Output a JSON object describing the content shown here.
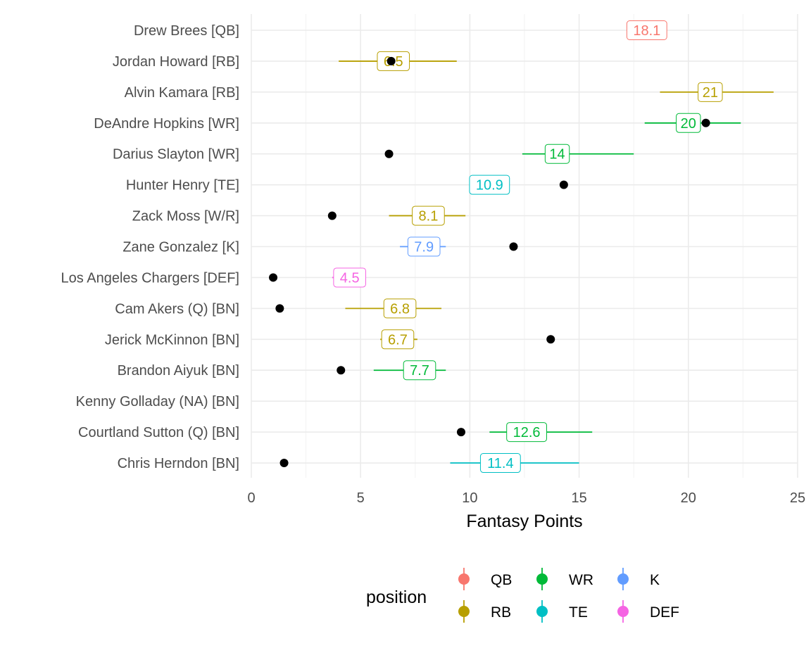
{
  "chart_data": {
    "type": "scatter",
    "xlabel": "Fantasy Points",
    "ylabel": "",
    "xlim": [
      0,
      25
    ],
    "x_ticks": [
      0,
      5,
      10,
      15,
      20,
      25
    ],
    "grid": true,
    "legend_placement": "bottom",
    "legend": {
      "title": "position",
      "entries": [
        {
          "name": "QB",
          "color": "#F8766D"
        },
        {
          "name": "RB",
          "color": "#B79F00"
        },
        {
          "name": "WR",
          "color": "#00BA38"
        },
        {
          "name": "TE",
          "color": "#00BFC4"
        },
        {
          "name": "K",
          "color": "#619CFF"
        },
        {
          "name": "DEF",
          "color": "#F564E3"
        }
      ]
    },
    "players": [
      {
        "name": "Drew Brees [QB]",
        "position": "QB",
        "projection": 18.1,
        "projection_label": "18.1",
        "low": null,
        "high": null,
        "actual": null
      },
      {
        "name": "Jordan Howard [RB]",
        "position": "RB",
        "projection": 6.5,
        "projection_label": "6.5",
        "low": 4.0,
        "high": 9.4,
        "actual": 6.4
      },
      {
        "name": "Alvin Kamara [RB]",
        "position": "RB",
        "projection": 21,
        "projection_label": "21",
        "low": 18.7,
        "high": 23.9,
        "actual": null
      },
      {
        "name": "DeAndre Hopkins [WR]",
        "position": "WR",
        "projection": 20,
        "projection_label": "20",
        "low": 18.0,
        "high": 22.4,
        "actual": 20.8
      },
      {
        "name": "Darius Slayton [WR]",
        "position": "WR",
        "projection": 14,
        "projection_label": "14",
        "low": 12.4,
        "high": 17.5,
        "actual": 6.3
      },
      {
        "name": "Hunter Henry [TE]",
        "position": "TE",
        "projection": 10.9,
        "projection_label": "10.9",
        "low": null,
        "high": null,
        "actual": 14.3
      },
      {
        "name": "Zack Moss [W/R]",
        "position": "RB",
        "projection": 8.1,
        "projection_label": "8.1",
        "low": 6.3,
        "high": 9.8,
        "actual": 3.7
      },
      {
        "name": "Zane Gonzalez [K]",
        "position": "K",
        "projection": 7.9,
        "projection_label": "7.9",
        "low": 6.8,
        "high": 8.9,
        "actual": 12.0
      },
      {
        "name": "Los Angeles Chargers [DEF]",
        "position": "DEF",
        "projection": 4.5,
        "projection_label": "4.5",
        "low": 3.7,
        "high": null,
        "actual": 1.0
      },
      {
        "name": "Cam Akers (Q) [BN]",
        "position": "RB",
        "projection": 6.8,
        "projection_label": "6.8",
        "low": 4.3,
        "high": 8.7,
        "actual": 1.3
      },
      {
        "name": "Jerick McKinnon [BN]",
        "position": "RB",
        "projection": 6.7,
        "projection_label": "6.7",
        "low": 5.9,
        "high": 7.6,
        "actual": 13.7
      },
      {
        "name": "Brandon Aiyuk [BN]",
        "position": "WR",
        "projection": 7.7,
        "projection_label": "7.7",
        "low": 5.6,
        "high": 8.9,
        "actual": 4.1
      },
      {
        "name": "Kenny Golladay (NA) [BN]",
        "position": null,
        "projection": null,
        "projection_label": "",
        "low": null,
        "high": null,
        "actual": null
      },
      {
        "name": "Courtland Sutton (Q) [BN]",
        "position": "WR",
        "projection": 12.6,
        "projection_label": "12.6",
        "low": 10.9,
        "high": 15.6,
        "actual": 9.6
      },
      {
        "name": "Chris Herndon [BN]",
        "position": "TE",
        "projection": 11.4,
        "projection_label": "11.4",
        "low": 9.1,
        "high": 15.0,
        "actual": 1.5
      }
    ]
  }
}
